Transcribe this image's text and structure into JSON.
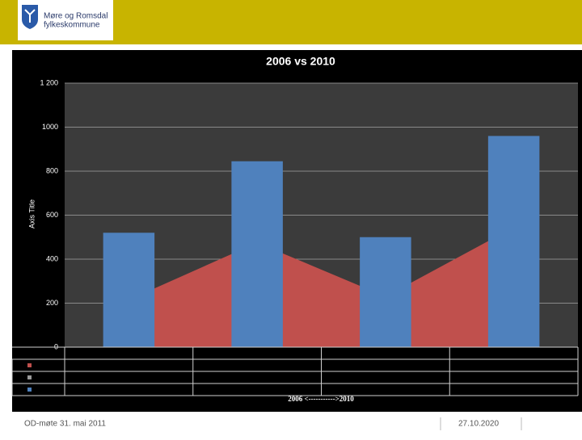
{
  "header": {
    "org_line1": "Møre og Romsdal",
    "org_line2": "fylkeskommune"
  },
  "chart_data": {
    "type": "bar",
    "title": "2006 vs 2010",
    "y_axis_title": "Axis Title",
    "x_axis_title": "2006 <----------->2010",
    "categories": [
      null,
      null,
      null,
      null
    ],
    "series": [
      {
        "type": "area",
        "color": "#c0504d",
        "values": [
          215,
          475,
          230,
          545
        ]
      },
      {
        "type": "line",
        "color": "#9a9a9a",
        "values": [
          null,
          null,
          null,
          null
        ]
      },
      {
        "type": "bar",
        "color": "#4f81bd",
        "values": [
          520,
          845,
          500,
          960
        ]
      }
    ],
    "ylim": [
      0,
      1200
    ],
    "yticks": [
      0,
      200,
      400,
      600,
      800,
      1000,
      {
        "value": 1200,
        "label": "1 200"
      }
    ],
    "grid": true,
    "data_table": true
  },
  "footer": {
    "left": "OD-møte 31. mai 2011",
    "date": "27.10.2020"
  }
}
